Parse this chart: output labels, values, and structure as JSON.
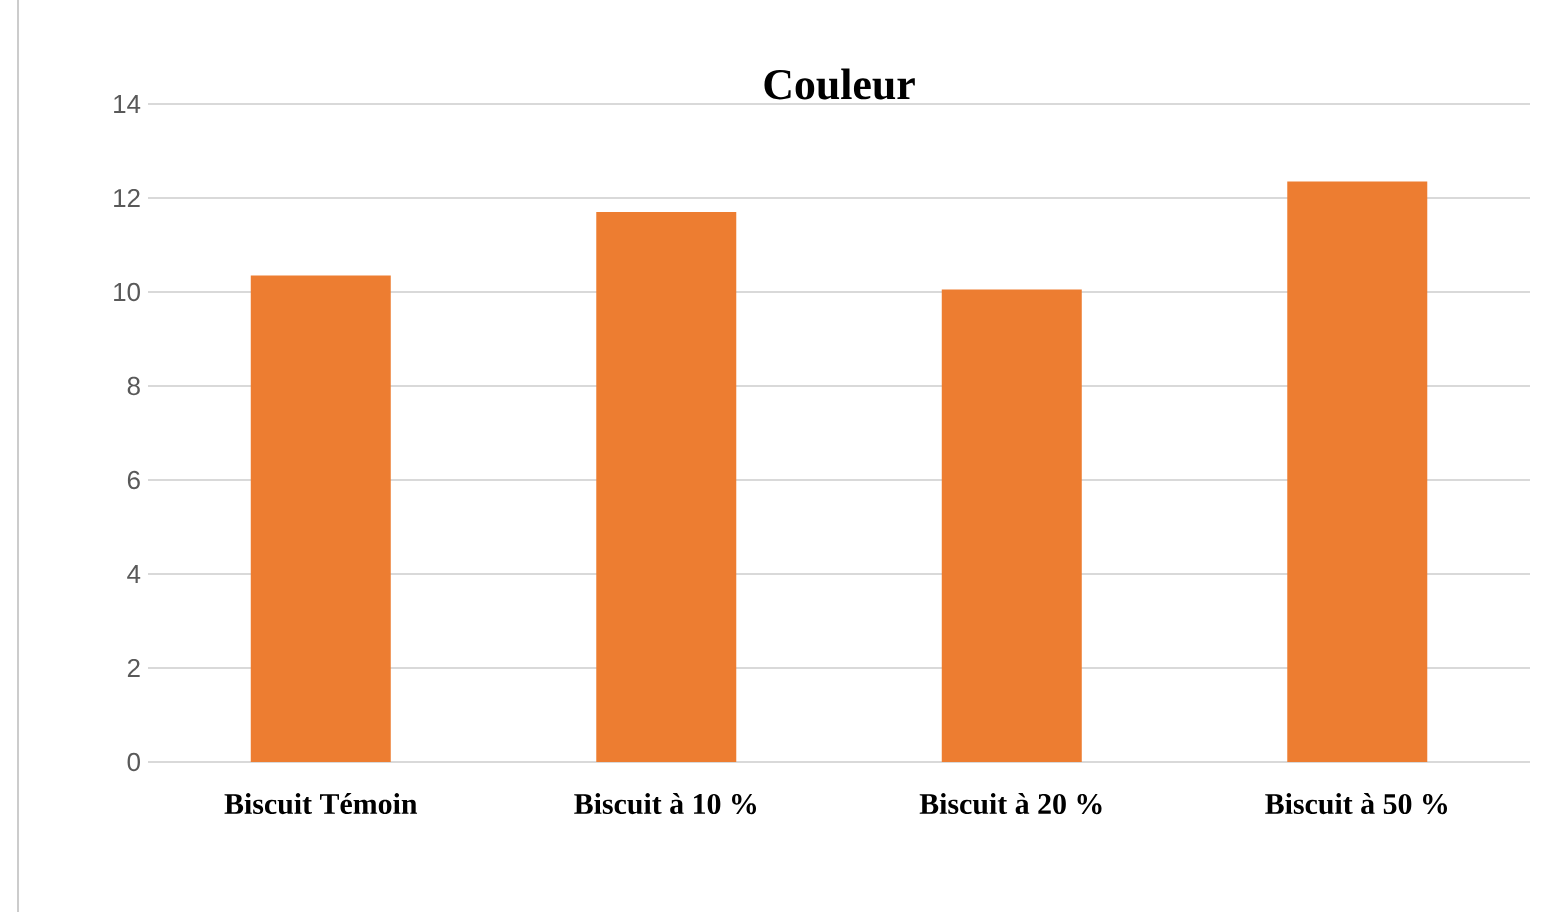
{
  "chart_data": {
    "type": "bar",
    "title": "Couleur",
    "categories": [
      "Biscuit Témoin",
      "Biscuit à 10 %",
      "Biscuit à 20 %",
      "Biscuit à 50 %"
    ],
    "values": [
      10.35,
      11.7,
      10.05,
      12.35
    ],
    "color": "#ed7d31",
    "ylim": [
      0,
      14
    ],
    "yticks": [
      0,
      2,
      4,
      6,
      8,
      10,
      12,
      14
    ],
    "grid": "y"
  }
}
